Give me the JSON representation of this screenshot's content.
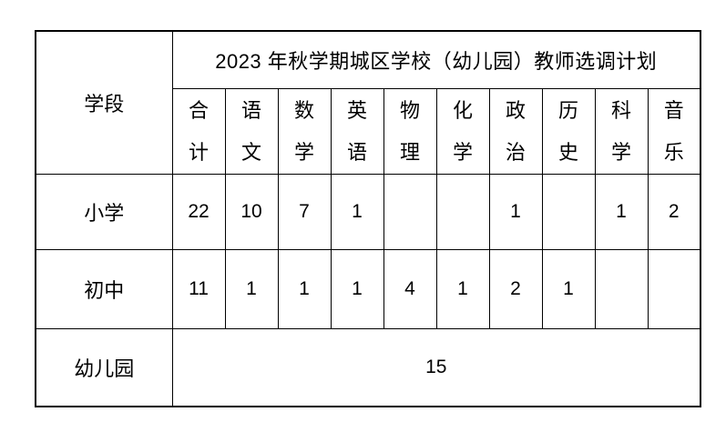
{
  "table": {
    "title": "2023 年秋学期城区学校（幼儿园）教师选调计划",
    "stage_header": "学段",
    "subjects": [
      "合计",
      "语文",
      "数学",
      "英语",
      "物理",
      "化学",
      "政治",
      "历史",
      "科学",
      "音乐"
    ],
    "rows": [
      {
        "label": "小学",
        "values": [
          "22",
          "10",
          "7",
          "1",
          "",
          "",
          "1",
          "",
          "1",
          "2"
        ]
      },
      {
        "label": "初中",
        "values": [
          "11",
          "1",
          "1",
          "1",
          "4",
          "1",
          "2",
          "1",
          "",
          ""
        ]
      },
      {
        "label": "幼儿园",
        "merged_value": "15"
      }
    ],
    "colors": {
      "border": "#000000",
      "text": "#000000",
      "background": "#ffffff"
    }
  }
}
